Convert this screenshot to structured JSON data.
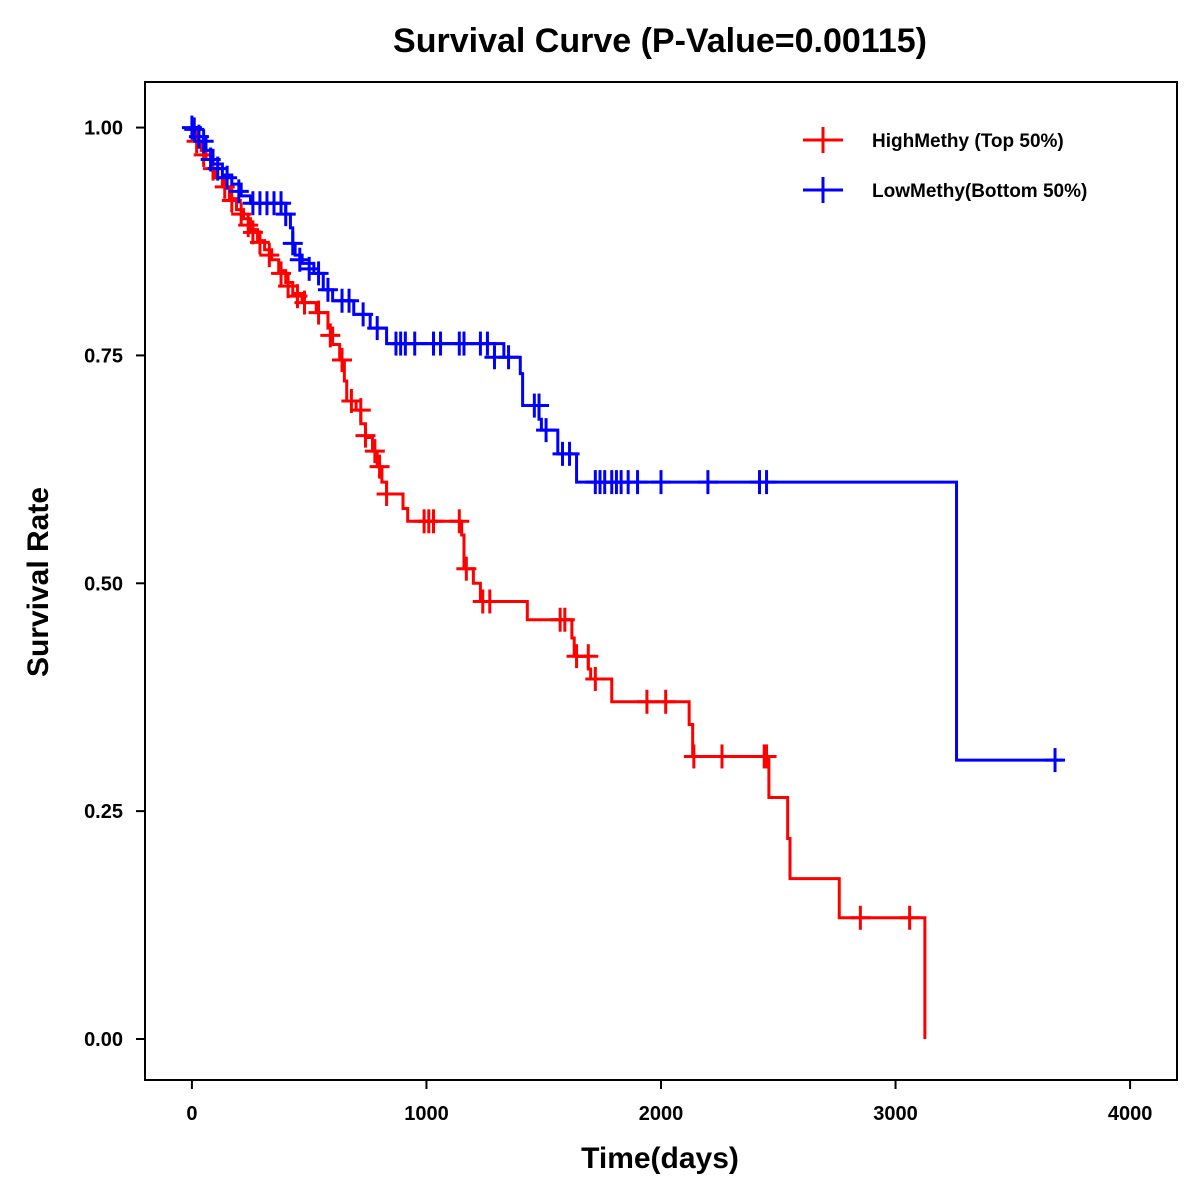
{
  "chart_data": {
    "type": "line",
    "subtype": "kaplan-meier-step",
    "title": "Survival Curve (P-Value=0.00115)",
    "xlabel": "Time(days)",
    "ylabel": "Survival Rate",
    "xlim": [
      -200,
      4200
    ],
    "ylim": [
      -0.045,
      1.05
    ],
    "x_ticks": [
      0,
      1000,
      2000,
      3000,
      4000
    ],
    "x_tick_labels": [
      "0",
      "1000",
      "2000",
      "3000",
      "4000"
    ],
    "y_ticks": [
      0,
      0.25,
      0.5,
      0.75,
      1.0
    ],
    "y_tick_labels": [
      "0.00",
      "0.25",
      "0.50",
      "0.75",
      "1.00"
    ],
    "grid": false,
    "legend_position": "top-right",
    "series": [
      {
        "name": "HighMethy (Top 50%)",
        "color": "#ff0000",
        "steps": [
          [
            0,
            1.0
          ],
          [
            20,
            0.985
          ],
          [
            40,
            0.975
          ],
          [
            60,
            0.965
          ],
          [
            80,
            0.955
          ],
          [
            100,
            0.945
          ],
          [
            130,
            0.935
          ],
          [
            160,
            0.922
          ],
          [
            190,
            0.91
          ],
          [
            220,
            0.9
          ],
          [
            250,
            0.888
          ],
          [
            280,
            0.876
          ],
          [
            310,
            0.866
          ],
          [
            340,
            0.855
          ],
          [
            370,
            0.843
          ],
          [
            400,
            0.83
          ],
          [
            430,
            0.818
          ],
          [
            470,
            0.808
          ],
          [
            530,
            0.797
          ],
          [
            580,
            0.78
          ],
          [
            600,
            0.762
          ],
          [
            630,
            0.745
          ],
          [
            650,
            0.722
          ],
          [
            660,
            0.7
          ],
          [
            700,
            0.69
          ],
          [
            720,
            0.675
          ],
          [
            740,
            0.66
          ],
          [
            770,
            0.645
          ],
          [
            790,
            0.628
          ],
          [
            810,
            0.611
          ],
          [
            830,
            0.598
          ],
          [
            900,
            0.582
          ],
          [
            920,
            0.568
          ],
          [
            1150,
            0.553
          ],
          [
            1160,
            0.516
          ],
          [
            1200,
            0.5
          ],
          [
            1230,
            0.48
          ],
          [
            1430,
            0.46
          ],
          [
            1620,
            0.44
          ],
          [
            1630,
            0.42
          ],
          [
            1690,
            0.406
          ],
          [
            1700,
            0.395
          ],
          [
            1790,
            0.37
          ],
          [
            2120,
            0.345
          ],
          [
            2135,
            0.31
          ],
          [
            2460,
            0.265
          ],
          [
            2540,
            0.22
          ],
          [
            2550,
            0.176
          ],
          [
            2760,
            0.133
          ],
          [
            3125,
            0.0
          ]
        ],
        "end_time": 3125,
        "censored": [
          [
            20,
            0.985
          ],
          [
            50,
            0.97
          ],
          [
            90,
            0.955
          ],
          [
            140,
            0.935
          ],
          [
            170,
            0.92
          ],
          [
            210,
            0.905
          ],
          [
            240,
            0.893
          ],
          [
            260,
            0.885
          ],
          [
            290,
            0.874
          ],
          [
            330,
            0.86
          ],
          [
            380,
            0.84
          ],
          [
            410,
            0.826
          ],
          [
            450,
            0.815
          ],
          [
            480,
            0.808
          ],
          [
            540,
            0.797
          ],
          [
            590,
            0.772
          ],
          [
            640,
            0.745
          ],
          [
            680,
            0.7
          ],
          [
            720,
            0.69
          ],
          [
            740,
            0.662
          ],
          [
            780,
            0.645
          ],
          [
            800,
            0.628
          ],
          [
            830,
            0.598
          ],
          [
            990,
            0.568
          ],
          [
            1010,
            0.568
          ],
          [
            1030,
            0.568
          ],
          [
            1140,
            0.568
          ],
          [
            1170,
            0.516
          ],
          [
            1240,
            0.48
          ],
          [
            1270,
            0.48
          ],
          [
            1570,
            0.46
          ],
          [
            1590,
            0.46
          ],
          [
            1640,
            0.42
          ],
          [
            1690,
            0.42
          ],
          [
            1720,
            0.395
          ],
          [
            1940,
            0.37
          ],
          [
            2020,
            0.37
          ],
          [
            2140,
            0.31
          ],
          [
            2260,
            0.31
          ],
          [
            2440,
            0.31
          ],
          [
            2450,
            0.31
          ],
          [
            2850,
            0.133
          ],
          [
            3060,
            0.133
          ]
        ]
      },
      {
        "name": "LowMethy(Bottom 50%)",
        "color": "#0000ff",
        "steps": [
          [
            0,
            1.0
          ],
          [
            30,
            0.99
          ],
          [
            60,
            0.975
          ],
          [
            90,
            0.96
          ],
          [
            130,
            0.948
          ],
          [
            170,
            0.938
          ],
          [
            210,
            0.925
          ],
          [
            250,
            0.917
          ],
          [
            400,
            0.905
          ],
          [
            420,
            0.89
          ],
          [
            430,
            0.873
          ],
          [
            440,
            0.86
          ],
          [
            470,
            0.851
          ],
          [
            520,
            0.84
          ],
          [
            560,
            0.822
          ],
          [
            600,
            0.81
          ],
          [
            690,
            0.795
          ],
          [
            760,
            0.78
          ],
          [
            830,
            0.763
          ],
          [
            1330,
            0.748
          ],
          [
            1400,
            0.73
          ],
          [
            1410,
            0.695
          ],
          [
            1480,
            0.68
          ],
          [
            1490,
            0.668
          ],
          [
            1560,
            0.642
          ],
          [
            1640,
            0.611
          ],
          [
            3260,
            0.306
          ]
        ],
        "end_time": 3710,
        "censored": [
          [
            0,
            1.0
          ],
          [
            10,
            0.998
          ],
          [
            30,
            0.99
          ],
          [
            50,
            0.985
          ],
          [
            80,
            0.965
          ],
          [
            110,
            0.955
          ],
          [
            150,
            0.945
          ],
          [
            200,
            0.93
          ],
          [
            260,
            0.917
          ],
          [
            290,
            0.917
          ],
          [
            320,
            0.917
          ],
          [
            350,
            0.917
          ],
          [
            380,
            0.917
          ],
          [
            400,
            0.905
          ],
          [
            430,
            0.873
          ],
          [
            460,
            0.855
          ],
          [
            500,
            0.845
          ],
          [
            540,
            0.84
          ],
          [
            580,
            0.822
          ],
          [
            640,
            0.81
          ],
          [
            670,
            0.81
          ],
          [
            730,
            0.795
          ],
          [
            790,
            0.78
          ],
          [
            870,
            0.763
          ],
          [
            890,
            0.763
          ],
          [
            910,
            0.763
          ],
          [
            950,
            0.763
          ],
          [
            1030,
            0.763
          ],
          [
            1060,
            0.763
          ],
          [
            1140,
            0.763
          ],
          [
            1160,
            0.763
          ],
          [
            1230,
            0.763
          ],
          [
            1260,
            0.763
          ],
          [
            1290,
            0.748
          ],
          [
            1350,
            0.748
          ],
          [
            1460,
            0.695
          ],
          [
            1480,
            0.695
          ],
          [
            1510,
            0.668
          ],
          [
            1580,
            0.642
          ],
          [
            1610,
            0.642
          ],
          [
            1720,
            0.611
          ],
          [
            1740,
            0.611
          ],
          [
            1760,
            0.611
          ],
          [
            1790,
            0.611
          ],
          [
            1810,
            0.611
          ],
          [
            1830,
            0.611
          ],
          [
            1860,
            0.611
          ],
          [
            1900,
            0.611
          ],
          [
            2000,
            0.611
          ],
          [
            2200,
            0.611
          ],
          [
            2420,
            0.611
          ],
          [
            2450,
            0.611
          ],
          [
            3680,
            0.306
          ]
        ]
      }
    ]
  }
}
